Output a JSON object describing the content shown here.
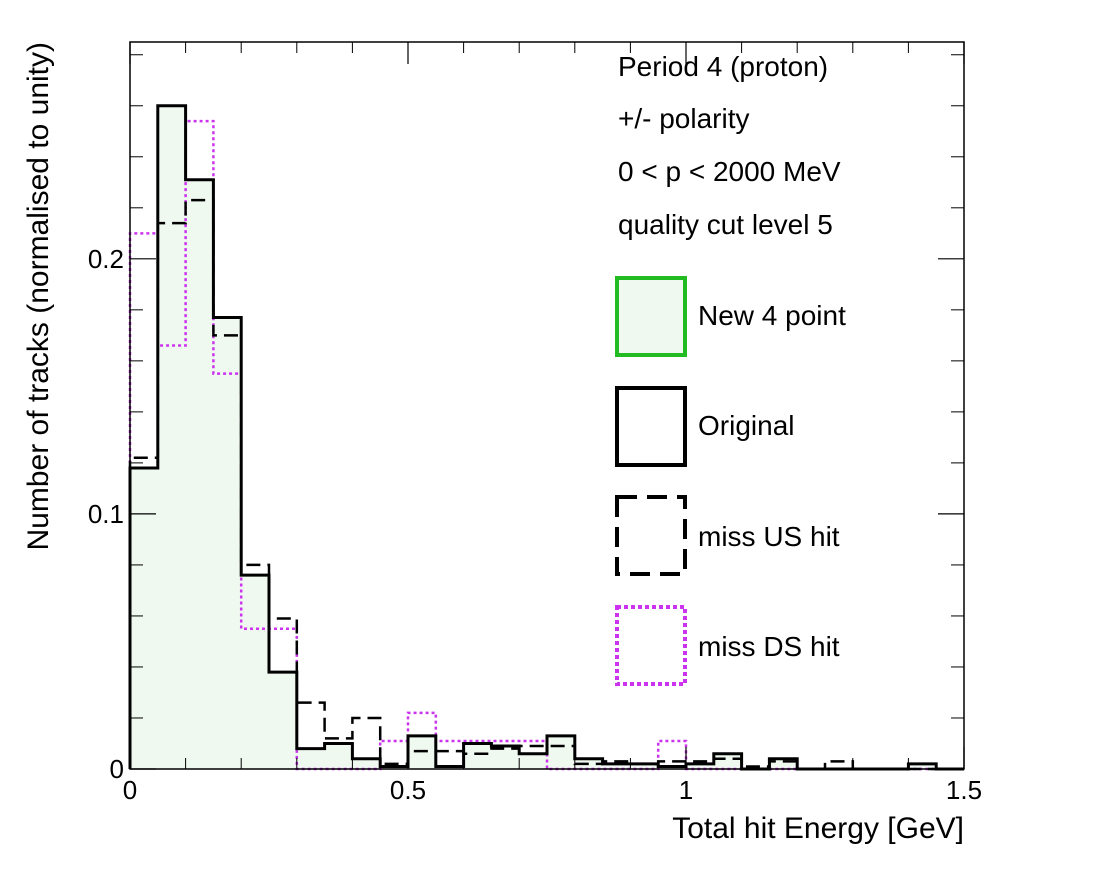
{
  "chart_data": {
    "type": "histogram",
    "title": "",
    "xlabel": "Total hit Energy [GeV]",
    "ylabel": "Number of tracks (normalised to unity)",
    "xlim": [
      0,
      1.5
    ],
    "ylim": [
      0,
      0.285
    ],
    "bin_width": 0.05,
    "x_ticks": [
      0,
      0.5,
      1,
      1.5
    ],
    "x_tick_labels": [
      "0",
      "0.5",
      "1",
      "1.5"
    ],
    "y_ticks": [
      0,
      0.1,
      0.2
    ],
    "y_tick_labels": [
      "0",
      "0.1",
      "0.2"
    ],
    "info_lines": [
      "Period 4 (proton)",
      "+/- polarity",
      "0 < p < 2000 MeV",
      "quality cut level 5"
    ],
    "series": [
      {
        "name": "New 4 point",
        "style": "filled",
        "color": "#22bb22",
        "fill": "#f0f9f0",
        "values": [
          0.118,
          0.26,
          0.231,
          0.177,
          0.076,
          0.038,
          0.008,
          0.01,
          0.004,
          0.001,
          0.013,
          0.001,
          0.01,
          0.009,
          0.006,
          0.013,
          0.004,
          0.002,
          0.002,
          0.001,
          0.002,
          0.006,
          0.0,
          0.004,
          0.0,
          0.0,
          0.0,
          0.0,
          0.002,
          0.0
        ]
      },
      {
        "name": "Original",
        "style": "solid",
        "color": "#000000",
        "values": [
          0.118,
          0.26,
          0.231,
          0.177,
          0.076,
          0.038,
          0.008,
          0.01,
          0.004,
          0.001,
          0.013,
          0.001,
          0.01,
          0.009,
          0.006,
          0.013,
          0.004,
          0.002,
          0.002,
          0.001,
          0.002,
          0.006,
          0.0,
          0.004,
          0.0,
          0.0,
          0.0,
          0.0,
          0.002,
          0.0
        ]
      },
      {
        "name": "miss US hit",
        "style": "dashed",
        "color": "#000000",
        "values": [
          0.122,
          0.214,
          0.223,
          0.17,
          0.08,
          0.059,
          0.026,
          0.012,
          0.02,
          0.002,
          0.007,
          0.007,
          0.006,
          0.008,
          0.009,
          0.009,
          0.002,
          0.003,
          0.002,
          0.003,
          0.003,
          0.004,
          0.001,
          0.003,
          0.0,
          0.003,
          0.0,
          0.0,
          0.0,
          0.0
        ]
      },
      {
        "name": "miss DS hit",
        "style": "dotted",
        "color": "#cc33ee",
        "values": [
          0.21,
          0.166,
          0.254,
          0.155,
          0.055,
          0.055,
          0.0,
          0.0,
          0.0,
          0.011,
          0.022,
          0.011,
          0.011,
          0.011,
          0.011,
          0.0,
          0.0,
          0.0,
          0.0,
          0.011,
          0.0,
          0.0,
          0.0,
          0.0,
          0.0,
          0.0,
          0.0,
          0.0,
          0.0,
          0.0
        ]
      }
    ]
  }
}
